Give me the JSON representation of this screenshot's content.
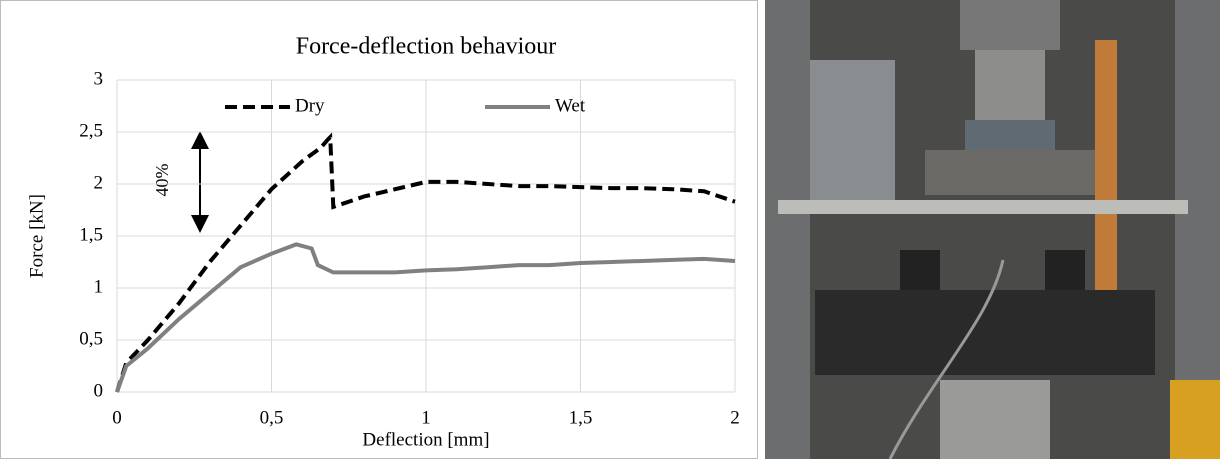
{
  "chart_data": {
    "type": "line",
    "title": "Force-deflection behaviour",
    "xlabel": "Deflection [mm]",
    "ylabel": "Force [kN]",
    "annotation": "40%",
    "xlim": [
      0,
      2
    ],
    "ylim": [
      0,
      3
    ],
    "xticks": [
      0,
      {
        "value": 0.5,
        "label": "0,5"
      },
      1,
      {
        "value": 1.5,
        "label": "1,5"
      },
      2
    ],
    "yticks": [
      0,
      {
        "value": 0.5,
        "label": "0,5"
      },
      1,
      {
        "value": 1.5,
        "label": "1,5"
      },
      2,
      {
        "value": 2.5,
        "label": "2,5"
      },
      3
    ],
    "grid": true,
    "legend": "top",
    "series": [
      {
        "name": "Dry",
        "color": "#000000",
        "dash": true,
        "x": [
          0,
          0.03,
          0.1,
          0.2,
          0.3,
          0.4,
          0.5,
          0.6,
          0.66,
          0.68,
          0.69,
          0.7,
          0.8,
          0.9,
          1.0,
          1.1,
          1.2,
          1.3,
          1.4,
          1.5,
          1.6,
          1.7,
          1.8,
          1.9,
          2.0
        ],
        "values": [
          0,
          0.28,
          0.5,
          0.85,
          1.25,
          1.6,
          1.95,
          2.22,
          2.35,
          2.42,
          2.45,
          1.78,
          1.88,
          1.95,
          2.02,
          2.02,
          2.0,
          1.98,
          1.98,
          1.97,
          1.96,
          1.96,
          1.95,
          1.93,
          1.83
        ]
      },
      {
        "name": "Wet",
        "color": "#808080",
        "dash": false,
        "x": [
          0,
          0.03,
          0.1,
          0.2,
          0.3,
          0.4,
          0.5,
          0.58,
          0.63,
          0.65,
          0.7,
          0.8,
          0.9,
          1.0,
          1.1,
          1.2,
          1.3,
          1.4,
          1.5,
          1.6,
          1.7,
          1.8,
          1.9,
          2.0
        ],
        "values": [
          0,
          0.25,
          0.42,
          0.7,
          0.95,
          1.2,
          1.33,
          1.42,
          1.38,
          1.22,
          1.15,
          1.15,
          1.15,
          1.17,
          1.18,
          1.2,
          1.22,
          1.22,
          1.24,
          1.25,
          1.26,
          1.27,
          1.28,
          1.26
        ]
      }
    ]
  }
}
